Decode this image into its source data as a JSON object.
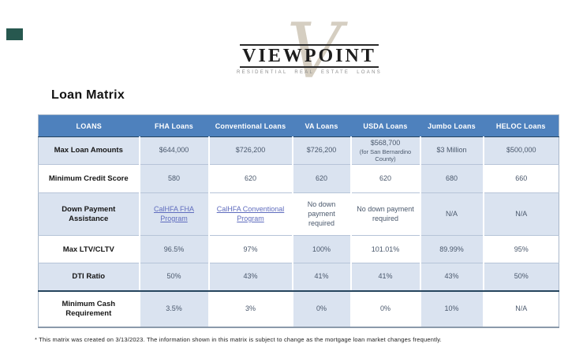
{
  "logo": {
    "brand": "VIEWPOINT",
    "tagline": "RESIDENTIAL REAL ESTATE LOANS",
    "watermark_letter": "V"
  },
  "page_title": "Loan Matrix",
  "table": {
    "columns": [
      "LOANS",
      "FHA Loans",
      "Conventional Loans",
      "VA Loans",
      "USDA Loans",
      "Jumbo Loans",
      "HELOC Loans"
    ],
    "rows": [
      {
        "label": "Max Loan Amounts",
        "values": [
          "$644,000",
          "$726,200",
          "$726,200",
          {
            "text": "$568,700",
            "note": "(for San Bernardino County)"
          },
          "$3 Million",
          "$500,000"
        ]
      },
      {
        "label": "Minimum Credit Score",
        "values": [
          "580",
          "620",
          "620",
          "620",
          "680",
          "660"
        ]
      },
      {
        "label": "Down Payment Assistance",
        "values": [
          {
            "text": "CalHFA FHA Program",
            "link": true
          },
          {
            "text": "CalHFA Conventional Program",
            "link": true
          },
          "No down payment required",
          "No down payment required",
          "N/A",
          "N/A"
        ]
      },
      {
        "label": "Max LTV/CLTV",
        "values": [
          "96.5%",
          "97%",
          "100%",
          "101.01%",
          "89.99%",
          "95%"
        ]
      },
      {
        "label": "DTI Ratio",
        "values": [
          "50%",
          "43%",
          "41%",
          "41%",
          "43%",
          "50%"
        ]
      },
      {
        "label": "Minimum Cash Requirement",
        "values": [
          "3.5%",
          "3%",
          "0%",
          "0%",
          "10%",
          "N/A"
        ]
      }
    ]
  },
  "footnote": "* This matrix was created on 3/13/2023.  The information shown in this matrix is subject to change as the mortgage loan market changes frequently.",
  "colors": {
    "header_bg": "#4e81bd",
    "header_text": "#ffffff",
    "band_bg": "#dae3f0",
    "body_text": "#4a586c",
    "label_text": "#161616",
    "link": "#5f6cbe",
    "dark_divider": "#26455e"
  }
}
